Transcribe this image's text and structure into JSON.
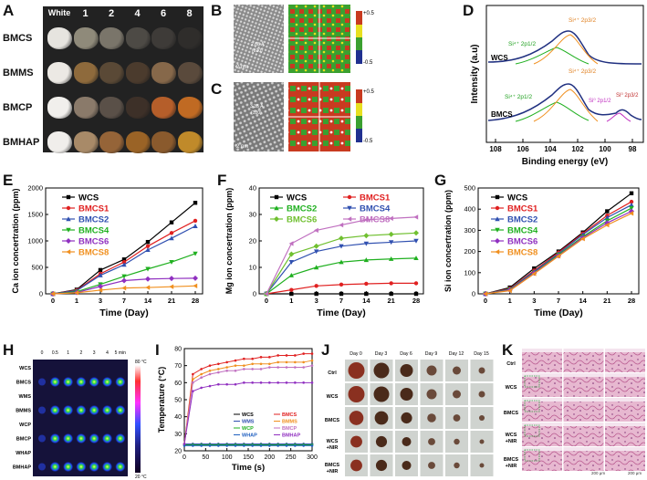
{
  "panel_labels": {
    "A": "A",
    "B": "B",
    "C": "C",
    "D": "D",
    "E": "E",
    "F": "F",
    "G": "G",
    "H": "H",
    "I": "I",
    "J": "J",
    "K": "K"
  },
  "panel_a": {
    "columns": [
      "White",
      "1",
      "2",
      "4",
      "6",
      "8"
    ],
    "rows": [
      "BMCS",
      "BMMS",
      "BMCP",
      "BMHAP"
    ],
    "colors": [
      [
        "#e6e4df",
        "#8f8a7a",
        "#7a756a",
        "#4d4a45",
        "#3e3b38",
        "#2f2d2b"
      ],
      [
        "#ece9e4",
        "#8e6a3c",
        "#5a4936",
        "#4b3b2d",
        "#86684a",
        "#5a4a3c"
      ],
      [
        "#f1efec",
        "#8a7a6a",
        "#5a5048",
        "#3d3028",
        "#b55e2a",
        "#c06a23"
      ],
      [
        "#f0eeeb",
        "#a88a68",
        "#956438",
        "#9a6326",
        "#8a5a2d",
        "#c08a2a"
      ]
    ]
  },
  "panel_b": {
    "scale": "2 nm",
    "spacing": "2.68 Å",
    "plane": "(020)",
    "cbar_top": "+0.5",
    "cbar_bottom": "-0.5"
  },
  "panel_c": {
    "scale": "2 nm",
    "spacing": "3.35 Å",
    "plane": "(120)",
    "cbar_top": "+0.5",
    "cbar_bottom": "-0.5"
  },
  "panel_d": {
    "xlabel": "Binding energy (eV)",
    "ylabel": "Intensity (a.u)",
    "xticks": [
      "108",
      "106",
      "104",
      "102",
      "100",
      "98"
    ],
    "wcs_label": "WCS",
    "bmcs_label": "BMCS",
    "peaks_top": [
      "Si⁴⁺ 2p1/2",
      "Si⁴⁺ 2p3/2"
    ],
    "peaks_bottom": [
      "Si⁴⁺ 2p1/2",
      "Si⁴⁺ 2p3/2",
      "Si⁰ 2p1/2",
      "Si⁰ 2p3/2"
    ]
  },
  "chart_data": [
    {
      "panel": "E",
      "type": "line",
      "xlabel": "Time (Day)",
      "ylabel": "Ca ion concertration (ppm)",
      "categories": [
        "0",
        "1",
        "3",
        "7",
        "14",
        "21",
        "28"
      ],
      "ylim": [
        0,
        2000
      ],
      "yticks": [
        "0",
        "500",
        "1000",
        "1500",
        "2000"
      ],
      "series": [
        {
          "name": "WCS",
          "color": "#000000",
          "marker": "square",
          "values": [
            0,
            80,
            450,
            650,
            980,
            1350,
            1720
          ]
        },
        {
          "name": "BMCS1",
          "color": "#e02020",
          "marker": "circle",
          "values": [
            0,
            70,
            380,
            600,
            900,
            1150,
            1380
          ]
        },
        {
          "name": "BMCS2",
          "color": "#3050b0",
          "marker": "tri-up",
          "values": [
            0,
            60,
            350,
            550,
            830,
            1050,
            1280
          ]
        },
        {
          "name": "BMCS4",
          "color": "#20b020",
          "marker": "tri-down",
          "values": [
            0,
            40,
            180,
            330,
            470,
            600,
            760
          ]
        },
        {
          "name": "BMCS6",
          "color": "#9030c0",
          "marker": "diamond",
          "values": [
            0,
            25,
            140,
            250,
            280,
            290,
            295
          ]
        },
        {
          "name": "BMCS8",
          "color": "#f09020",
          "marker": "tri-left",
          "values": [
            0,
            20,
            70,
            110,
            120,
            135,
            150
          ]
        }
      ]
    },
    {
      "panel": "F",
      "type": "line",
      "xlabel": "Time (Day)",
      "ylabel": "Mg ion concertration (ppm)",
      "categories": [
        "0",
        "1",
        "3",
        "7",
        "14",
        "21",
        "28"
      ],
      "ylim": [
        0,
        40
      ],
      "yticks": [
        "0",
        "10",
        "20",
        "30",
        "40"
      ],
      "series": [
        {
          "name": "WCS",
          "color": "#000000",
          "marker": "square",
          "values": [
            0,
            0,
            0,
            0,
            0,
            0,
            0
          ]
        },
        {
          "name": "BMCS1",
          "color": "#e02020",
          "marker": "circle",
          "values": [
            0,
            1.5,
            3,
            3.5,
            3.8,
            4,
            4
          ]
        },
        {
          "name": "BMCS2",
          "color": "#20b020",
          "marker": "tri-up",
          "values": [
            0,
            7,
            10,
            12,
            12.8,
            13.2,
            13.5
          ]
        },
        {
          "name": "BMCS4",
          "color": "#3050b0",
          "marker": "tri-down",
          "values": [
            0,
            12,
            16,
            18,
            19,
            19.5,
            20
          ]
        },
        {
          "name": "BMCS6",
          "color": "#70c030",
          "marker": "diamond",
          "values": [
            0,
            15,
            18,
            21,
            22,
            22.5,
            23
          ]
        },
        {
          "name": "BMCS8",
          "color": "#c070c0",
          "marker": "tri-left",
          "values": [
            0,
            19,
            24,
            26,
            28,
            28.5,
            29
          ]
        }
      ]
    },
    {
      "panel": "G",
      "type": "line",
      "xlabel": "Time (Day)",
      "ylabel": "Si ion concertration (ppm)",
      "categories": [
        "0",
        "1",
        "3",
        "7",
        "14",
        "21",
        "28"
      ],
      "ylim": [
        0,
        500
      ],
      "yticks": [
        "0",
        "100",
        "200",
        "300",
        "400",
        "500"
      ],
      "series": [
        {
          "name": "WCS",
          "color": "#000000",
          "marker": "square",
          "values": [
            0,
            30,
            120,
            200,
            290,
            390,
            475
          ]
        },
        {
          "name": "BMCS1",
          "color": "#e02020",
          "marker": "circle",
          "values": [
            0,
            25,
            110,
            195,
            285,
            370,
            435
          ]
        },
        {
          "name": "BMCS2",
          "color": "#3050b0",
          "marker": "tri-up",
          "values": [
            0,
            22,
            105,
            190,
            280,
            360,
            420
          ]
        },
        {
          "name": "BMCS4",
          "color": "#20b020",
          "marker": "tri-down",
          "values": [
            0,
            20,
            100,
            185,
            270,
            345,
            405
          ]
        },
        {
          "name": "BMCS6",
          "color": "#9030c0",
          "marker": "diamond",
          "values": [
            0,
            18,
            98,
            180,
            265,
            335,
            390
          ]
        },
        {
          "name": "BMCS8",
          "color": "#f09020",
          "marker": "tri-left",
          "values": [
            0,
            15,
            95,
            178,
            260,
            325,
            380
          ]
        }
      ]
    },
    {
      "panel": "I",
      "type": "line",
      "xlabel": "Time (s)",
      "ylabel": "Temperature (°C)",
      "xlim": [
        0,
        300
      ],
      "ylim": [
        20,
        80
      ],
      "xticks": [
        "0",
        "50",
        "100",
        "150",
        "200",
        "250",
        "300"
      ],
      "yticks": [
        "20",
        "30",
        "40",
        "50",
        "60",
        "70",
        "80"
      ],
      "series": [
        {
          "name": "WCS",
          "color": "#000000",
          "values": [
            24,
            24,
            24,
            24,
            24,
            24,
            24,
            24,
            24,
            24,
            24,
            24,
            24,
            24,
            24,
            24
          ]
        },
        {
          "name": "BMCS",
          "color": "#e02020",
          "values": [
            24,
            65,
            68,
            70,
            71,
            72,
            73,
            74,
            74,
            75,
            75,
            76,
            76,
            76,
            77,
            77
          ]
        },
        {
          "name": "WMS",
          "color": "#3050b0",
          "values": [
            24,
            24,
            24,
            24,
            24,
            24,
            24,
            24,
            24,
            24,
            24,
            24,
            24,
            24,
            24,
            24
          ]
        },
        {
          "name": "BMMS",
          "color": "#f09020",
          "values": [
            24,
            62,
            65,
            67,
            68,
            69,
            70,
            70,
            71,
            71,
            71,
            72,
            72,
            72,
            72,
            73
          ]
        },
        {
          "name": "WCP",
          "color": "#20b020",
          "values": [
            23.5,
            23.5,
            23.5,
            23.5,
            23.5,
            23.5,
            23.5,
            23.5,
            23.5,
            23.5,
            23.5,
            23.5,
            23.5,
            23.5,
            23.5,
            23.5
          ]
        },
        {
          "name": "BMCP",
          "color": "#c070c0",
          "values": [
            24,
            60,
            63,
            65,
            66,
            67,
            67,
            68,
            68,
            68,
            69,
            69,
            69,
            69,
            69,
            70
          ]
        },
        {
          "name": "WHAP",
          "color": "#2060c0",
          "values": [
            23,
            23,
            23,
            23,
            23,
            23,
            23,
            23,
            23,
            23,
            23,
            23,
            23,
            23,
            23,
            23
          ]
        },
        {
          "name": "BMHAP",
          "color": "#9030c0",
          "values": [
            24,
            55,
            57,
            58,
            59,
            59,
            59,
            60,
            60,
            60,
            60,
            60,
            60,
            60,
            60,
            60
          ]
        }
      ]
    }
  ],
  "panel_h": {
    "times": [
      "0",
      "0.5",
      "1",
      "2",
      "3",
      "4",
      "5 min"
    ],
    "rows": [
      "WCS",
      "BMCS",
      "WMS",
      "BMMS",
      "WCP",
      "BMCP",
      "WHAP",
      "BMHAP"
    ],
    "hot_rows": [
      false,
      true,
      false,
      true,
      false,
      true,
      false,
      true
    ],
    "cbar_top": "80 °C",
    "cbar_bottom": "20 °C"
  },
  "panel_j": {
    "days": [
      "Day 0",
      "Day 3",
      "Day 6",
      "Day 9",
      "Day 12",
      "Day 15"
    ],
    "rows": [
      "Ctrl",
      "WCS",
      "BMCS",
      "WCS\n+NIR",
      "BMCS\n+NIR"
    ],
    "row1": "Ctrl",
    "row2": "WCS",
    "row3": "BMCS",
    "row4a": "WCS",
    "row4b": "+NIR",
    "row5a": "BMCS",
    "row5b": "+NIR"
  },
  "panel_k": {
    "row1": "Ctrl",
    "row2": "WCS",
    "row3": "BMCS",
    "row4a": "WCS",
    "row4b": "+NIR",
    "row5a": "BMCS",
    "row5b": "+NIR",
    "scale1": "200 μm",
    "scale2": "200 μm"
  }
}
